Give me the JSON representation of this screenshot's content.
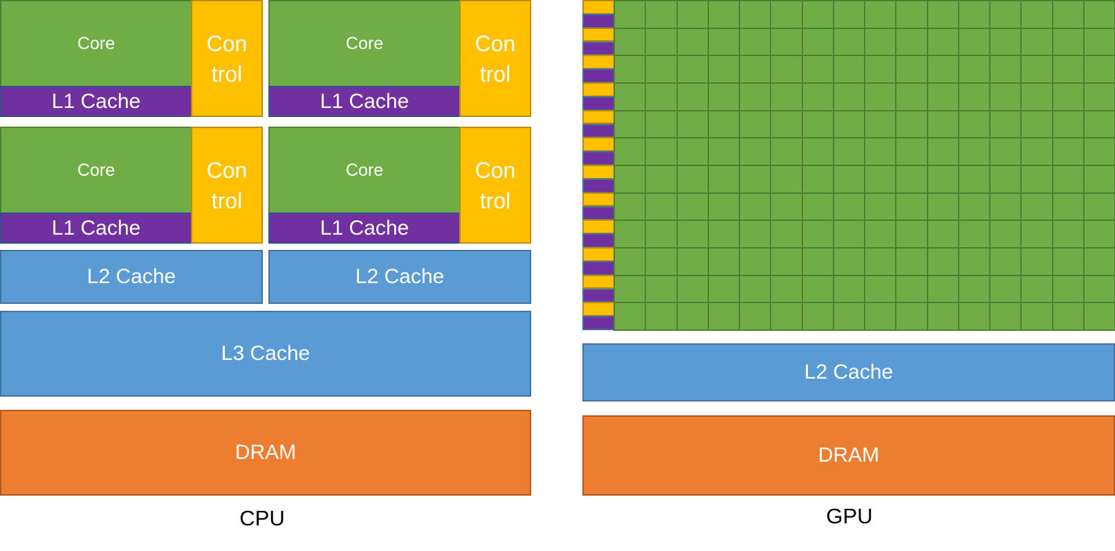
{
  "cpu": {
    "label": "CPU",
    "modules": [
      {
        "core": "Core",
        "l1": "L1 Cache",
        "control": [
          "Con",
          "trol"
        ]
      },
      {
        "core": "Core",
        "l1": "L1 Cache",
        "control": [
          "Con",
          "trol"
        ]
      },
      {
        "core": "Core",
        "l1": "L1 Cache",
        "control": [
          "Con",
          "trol"
        ]
      },
      {
        "core": "Core",
        "l1": "L1 Cache",
        "control": [
          "Con",
          "trol"
        ]
      }
    ],
    "l2": [
      "L2 Cache",
      "L2 Cache"
    ],
    "l3": "L3 Cache",
    "dram": "DRAM"
  },
  "gpu": {
    "label": "GPU",
    "grid": {
      "rows": 12,
      "columns": 16,
      "control_l1_pairs_per_row": 1
    },
    "l2": "L2 Cache",
    "dram": "DRAM"
  },
  "colors": {
    "core": "#70AD47",
    "l1_cache": "#7030A0",
    "control": "#FFC000",
    "cache": "#5B9BD5",
    "dram": "#ED7D31"
  }
}
